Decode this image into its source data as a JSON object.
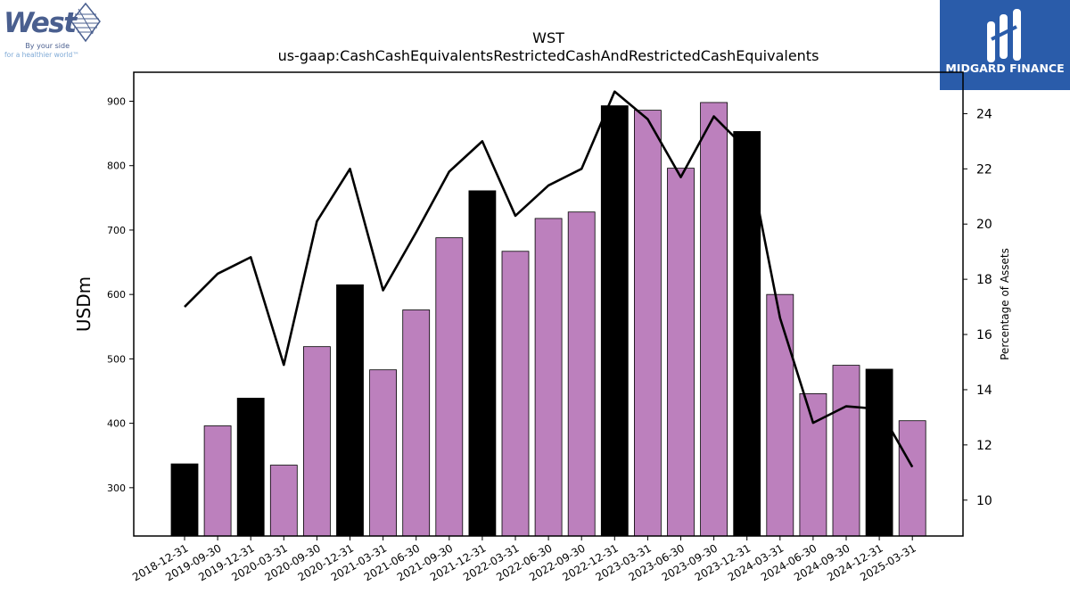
{
  "logos": {
    "left": {
      "brand": "West",
      "tagline1": "By your side",
      "tagline2": "for a healthier world™"
    },
    "right": {
      "brand": "MIDGARD FINANCE"
    }
  },
  "colors": {
    "bar_default": "#bc80bd",
    "bar_highlight": "#000000",
    "line": "#000000",
    "midgard_bg": "#2a5caa",
    "west_blue": "#4a5f8f",
    "west_tagline": "#7faad6"
  },
  "chart_data": {
    "type": "bar",
    "title": "WST",
    "subtitle": "us-gaap:CashCashEquivalentsRestrictedCashAndRestrictedCashEquivalents",
    "ylabel": "USDm",
    "y2label": "Percentage of Assets",
    "ylim": [
      225,
      945
    ],
    "y2lim": [
      8.7,
      25.5
    ],
    "yticks": [
      300,
      400,
      500,
      600,
      700,
      800,
      900
    ],
    "y2ticks": [
      10,
      12,
      14,
      16,
      18,
      20,
      22,
      24
    ],
    "categories": [
      "2018-12-31",
      "2019-09-30",
      "2019-12-31",
      "2020-03-31",
      "2020-09-30",
      "2020-12-31",
      "2021-03-31",
      "2021-06-30",
      "2021-09-30",
      "2021-12-31",
      "2022-03-31",
      "2022-06-30",
      "2022-09-30",
      "2022-12-31",
      "2023-03-31",
      "2023-06-30",
      "2023-09-30",
      "2023-12-31",
      "2024-03-31",
      "2024-06-30",
      "2024-09-30",
      "2024-12-31",
      "2025-03-31"
    ],
    "series": [
      {
        "type": "bar",
        "values": [
          337,
          396,
          439,
          335,
          519,
          615,
          483,
          576,
          688,
          761,
          667,
          718,
          728,
          893,
          886,
          796,
          898,
          853,
          600,
          446,
          490,
          484,
          404
        ],
        "highlight": [
          true,
          false,
          true,
          false,
          false,
          true,
          false,
          false,
          false,
          true,
          false,
          false,
          false,
          true,
          false,
          false,
          false,
          true,
          false,
          false,
          false,
          true,
          false
        ]
      },
      {
        "type": "line",
        "axis": "right",
        "values": [
          17.0,
          18.2,
          18.8,
          14.9,
          20.1,
          22.0,
          17.6,
          19.7,
          21.9,
          23.0,
          20.3,
          21.4,
          22.0,
          24.8,
          23.8,
          21.7,
          23.9,
          22.7,
          16.6,
          12.8,
          13.4,
          13.3,
          11.2
        ]
      }
    ],
    "grid": false,
    "legend": "none"
  }
}
